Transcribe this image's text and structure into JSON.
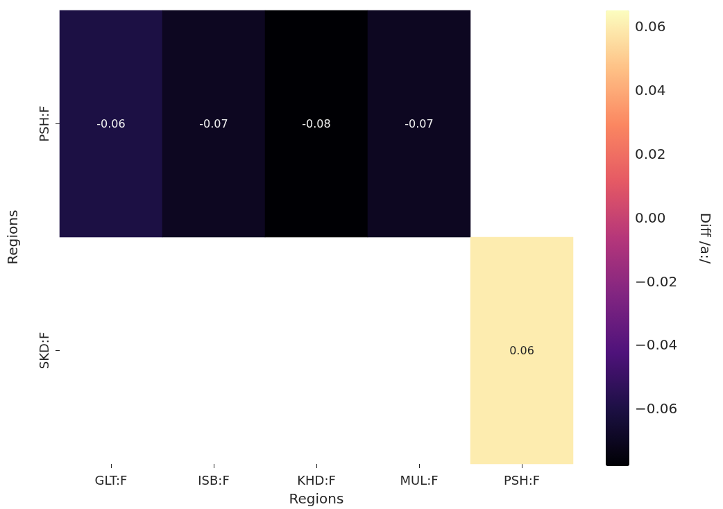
{
  "chart_data": {
    "type": "heatmap",
    "xlabel": "Regions",
    "ylabel": "Regions",
    "clabel": "Diff /a:/",
    "categories": [
      "GLT:F",
      "ISB:F",
      "KHD:F",
      "MUL:F",
      "PSH:F"
    ],
    "y_categories": [
      "PSH:F",
      "SKD:F"
    ],
    "cells": [
      [
        -0.06,
        -0.07,
        -0.08,
        -0.07,
        null
      ],
      [
        null,
        null,
        null,
        null,
        0.06
      ]
    ],
    "clim": [
      -0.078,
      0.065
    ],
    "cticks": [
      -0.06,
      -0.04,
      -0.02,
      {
        "value": 0,
        "label": "0.00"
      },
      0.02,
      0.04,
      0.06
    ],
    "data_labels": true
  }
}
